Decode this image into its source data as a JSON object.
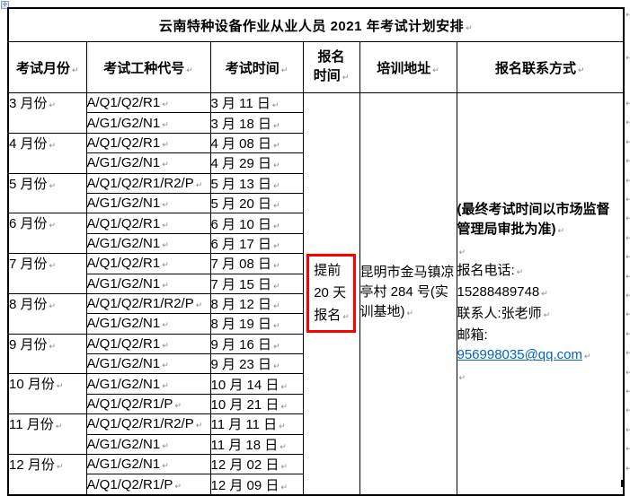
{
  "title": "云南特种设备作业从业人员 2021 年考试计划安排",
  "headers": {
    "month": "考试月份",
    "code": "考试工种代号",
    "time": "考试时间",
    "signup": "报名\n时间",
    "address": "培训地址",
    "contact": "报名联系方式"
  },
  "months": [
    {
      "label": "3 月份",
      "sessions": [
        {
          "code": "A/Q1/Q2/R1",
          "date": "3 月 11 日"
        },
        {
          "code": "A/G1/G2/N1",
          "date": "3 月 18 日"
        }
      ]
    },
    {
      "label": "4 月份",
      "sessions": [
        {
          "code": "A/Q1/Q2/R1",
          "date": "4 月 08 日"
        },
        {
          "code": "A/G1/G2/N1",
          "date": "4 月 29 日"
        }
      ]
    },
    {
      "label": "5 月份",
      "sessions": [
        {
          "code": "A/Q1/Q2/R1/R2/P",
          "date": "5 月 13 日"
        },
        {
          "code": "A/G1/G2/N1",
          "date": "5 月 20 日"
        }
      ]
    },
    {
      "label": "6 月份",
      "sessions": [
        {
          "code": "A/Q1/Q2/R1",
          "date": "6 月 10 日"
        },
        {
          "code": "A/G1/G2/N1",
          "date": "6 月 17 日"
        }
      ]
    },
    {
      "label": "7 月份",
      "sessions": [
        {
          "code": "A/Q1/Q2/R1",
          "date": "7 月 08 日"
        },
        {
          "code": "A/G1/G2/N1",
          "date": "7 月 15 日"
        }
      ]
    },
    {
      "label": "8 月份",
      "sessions": [
        {
          "code": "A/Q1/Q2/R1/R2/P",
          "date": "8 月 12 日"
        },
        {
          "code": "A/G1/G2/N1",
          "date": "8 月 19 日"
        }
      ]
    },
    {
      "label": "9 月份",
      "sessions": [
        {
          "code": "A/Q1/Q2/R1",
          "date": "9 月 16 日"
        },
        {
          "code": "A/G1/G2/N1",
          "date": "9 月 23 日"
        }
      ]
    },
    {
      "label": "10 月份",
      "sessions": [
        {
          "code": "A/G1/G2/N1",
          "date": "10 月 14 日"
        },
        {
          "code": "A/Q1/Q2/R1/P",
          "date": "10 月 21 日"
        }
      ]
    },
    {
      "label": "11 月份",
      "sessions": [
        {
          "code": "A/Q1/Q2/R1/R2/P",
          "date": "11 月 11 日"
        },
        {
          "code": "A/G1/G2/N1",
          "date": "11 月 18 日"
        }
      ]
    },
    {
      "label": "12 月份",
      "sessions": [
        {
          "code": "A/G1/G2/N1",
          "date": "12 月 02 日"
        },
        {
          "code": "A/Q1/Q2/R1/P",
          "date": "12 月 09 日"
        }
      ]
    }
  ],
  "signup_note": "提前\n20 天\n报名",
  "address": "昆明市金马镇凉亭村 284 号(实训基地)",
  "contact": {
    "note": "(最终考试时间以市场监督管理局审批为准)",
    "phone_label": "报名电话:",
    "phone": "15288489748",
    "person": "联系人:张老师",
    "email_label": "邮箱:",
    "email": "956998035@qq.com"
  },
  "marks": {
    "paragraph": "↵"
  },
  "icons": {
    "move_handle": "✛"
  },
  "colors": {
    "highlight_red": "#FF0000",
    "link_blue": "#0563C1",
    "mark_gray": "#8A8A8A"
  }
}
